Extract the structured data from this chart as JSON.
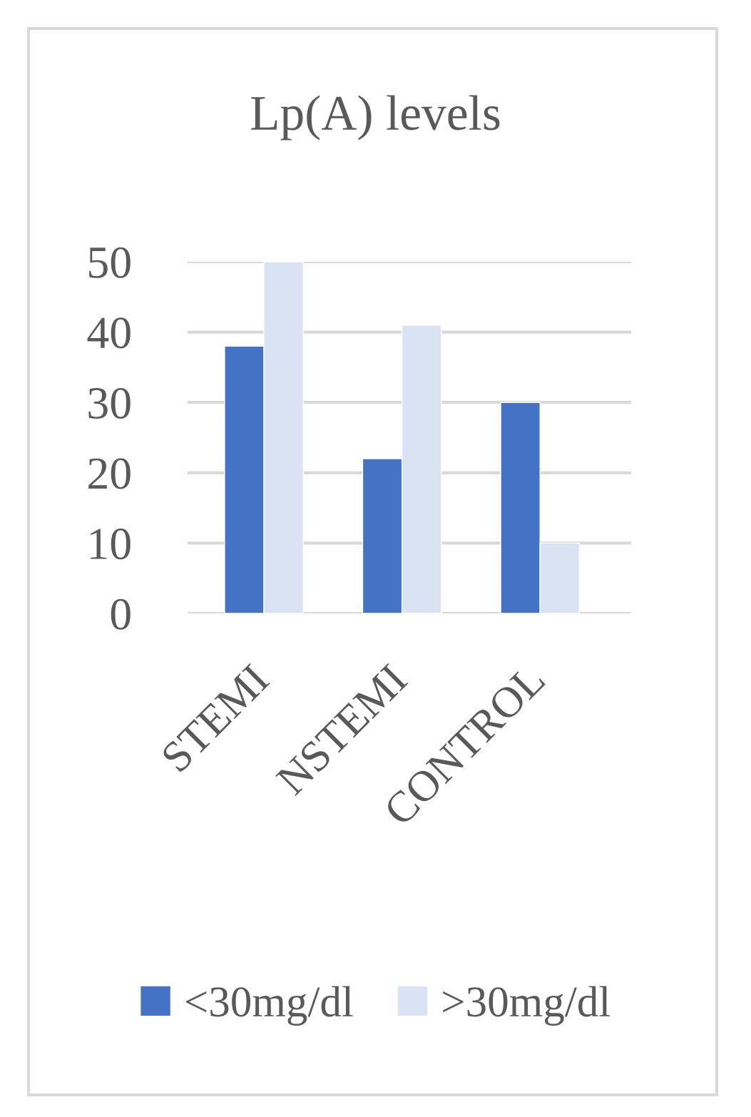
{
  "chart_data": {
    "type": "bar",
    "title": "Lp(A) levels",
    "categories": [
      "STEMI",
      "NSTEMI",
      "CONTROL"
    ],
    "series": [
      {
        "name": "<30mg/dl",
        "color": "#4472c4",
        "values": [
          38,
          22,
          30
        ]
      },
      {
        "name": ">30mg/dl",
        "color": "#dae3f3",
        "values": [
          50,
          41,
          10
        ]
      }
    ],
    "ylim": [
      0,
      50
    ],
    "yticks": [
      0,
      10,
      20,
      30,
      40,
      50
    ],
    "grid": "y",
    "legend": "bottom"
  }
}
